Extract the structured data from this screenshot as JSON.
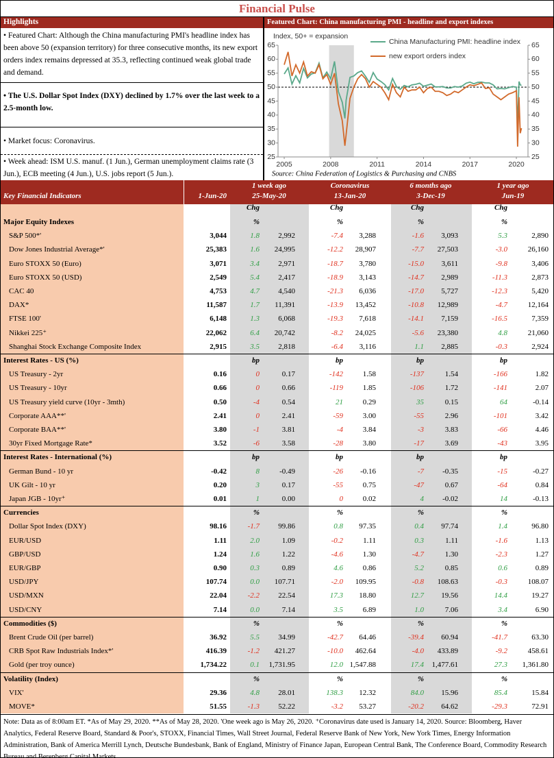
{
  "header": {
    "title": "Financial Pulse"
  },
  "highlights": {
    "title": "Highlights",
    "items": [
      "• Featured Chart: Although the China manufacturing PMI's headline index has been above 50 (expansion territory) for three consecutive months, its new export orders index remains depressed at 35.3, reflecting continued weak global trade and demand.",
      "• The U.S. Dollar Spot Index (DXY) declined by 1.7% over the last week to a 2.5-month low.",
      "• Market focus: Coronavirus.",
      "• Week ahead: ISM U.S. manuf. (1 Jun.), German unemployment claims rate (3 Jun.), ECB meeting (4 Jun.), U.S. jobs report (5 Jun.)."
    ]
  },
  "chart_data": {
    "type": "line",
    "title": "Featured Chart: China manufacturing PMI - headline and export indexes",
    "y_label": "Index, 50+ = expansion",
    "source": "Source: China Federation of Logistics & Purchasing and CNBS",
    "x": [
      2005,
      2005.25,
      2005.5,
      2005.75,
      2006,
      2006.25,
      2006.5,
      2006.75,
      2007,
      2007.25,
      2007.5,
      2007.75,
      2008,
      2008.25,
      2008.5,
      2008.75,
      2008.92,
      2009,
      2009.25,
      2009.5,
      2009.75,
      2010,
      2010.25,
      2010.5,
      2010.75,
      2011,
      2011.25,
      2011.5,
      2011.75,
      2012,
      2012.25,
      2012.5,
      2012.75,
      2013,
      2013.25,
      2013.5,
      2013.75,
      2014,
      2014.25,
      2014.5,
      2014.75,
      2015,
      2015.25,
      2015.5,
      2015.75,
      2016,
      2016.25,
      2016.5,
      2016.75,
      2017,
      2017.25,
      2017.5,
      2017.75,
      2018,
      2018.25,
      2018.5,
      2018.75,
      2019,
      2019.25,
      2019.5,
      2019.75,
      2020,
      2020.08,
      2020.17,
      2020.25,
      2020.33
    ],
    "series": [
      {
        "name": "China Manufacturing PMI: headline index",
        "color": "#5aa88a",
        "values": [
          54.7,
          56.9,
          51.1,
          54.1,
          51.5,
          56.7,
          53.3,
          54.7,
          55.1,
          58.6,
          53.3,
          55.4,
          53.0,
          59.2,
          48.4,
          44.6,
          38.8,
          45.3,
          53.5,
          54.0,
          55.2,
          55.8,
          53.9,
          51.7,
          55.2,
          52.9,
          52.0,
          50.9,
          49.0,
          53.1,
          50.2,
          49.2,
          50.6,
          50.1,
          50.8,
          51.0,
          51.4,
          50.3,
          50.7,
          51.1,
          50.1,
          50.1,
          50.2,
          49.7,
          49.7,
          50.2,
          50.0,
          50.4,
          51.4,
          51.8,
          51.2,
          51.7,
          51.8,
          51.5,
          51.5,
          50.8,
          49.4,
          49.5,
          49.4,
          49.8,
          50.2,
          50.0,
          35.7,
          52.0,
          50.8,
          50.6
        ]
      },
      {
        "name": "new export orders index",
        "color": "#d2692a",
        "values": [
          58,
          62.6,
          54,
          58,
          55,
          59,
          54,
          55.5,
          55,
          58,
          53,
          54.5,
          51,
          55,
          44,
          38,
          29,
          33,
          46,
          50,
          53,
          54.5,
          53,
          50,
          52,
          51,
          50,
          48,
          45.5,
          51,
          48,
          46.5,
          50,
          48.5,
          49,
          49,
          50,
          48,
          49.5,
          50,
          48.5,
          48.5,
          48,
          47,
          47.5,
          48.5,
          48,
          49,
          50,
          50.8,
          50.5,
          51,
          51.5,
          49.5,
          49.8,
          47.5,
          46.5,
          45.5,
          46.5,
          47.5,
          48,
          48.7,
          28.7,
          46.4,
          33.5,
          35.3
        ]
      }
    ],
    "xlim": [
      2004.6,
      2020.75
    ],
    "xticks": [
      2005,
      2008,
      2011,
      2014,
      2017,
      2020
    ],
    "ylim": [
      25,
      65
    ],
    "yticks": [
      25,
      30,
      35,
      40,
      45,
      50,
      55,
      60,
      65
    ],
    "y2lim": [
      25,
      65
    ],
    "y2ticks": [
      25,
      30,
      35,
      40,
      45,
      50,
      55,
      60,
      65
    ],
    "reference_line": 50,
    "shaded_x": [
      2007.9,
      2009.5
    ],
    "legend": "top-right"
  },
  "table": {
    "title": "Key Financial Indicators",
    "current_date": "1-Jun-20",
    "periods": [
      {
        "label": "1 week ago",
        "date": "25-May-20"
      },
      {
        "label": "Coronavirus",
        "date": "13-Jan-20"
      },
      {
        "label": "6 months ago",
        "date": "3-Dec-19"
      },
      {
        "label": "1 year ago",
        "date": "Jun-19"
      }
    ],
    "change_header": "Chg",
    "up_color": "#2f9e44",
    "down_color": "#e0301e",
    "sections": [
      {
        "name": "Major Equity Indexes",
        "unit": "%",
        "rows": [
          [
            "S&P 500*'",
            "3,044",
            "1.8",
            "2,992",
            "-7.4",
            "3,288",
            "-1.6",
            "3,093",
            "5.3",
            "2,890"
          ],
          [
            "Dow Jones Industrial Average*'",
            "25,383",
            "1.6",
            "24,995",
            "-12.2",
            "28,907",
            "-7.7",
            "27,503",
            "-3.0",
            "26,160"
          ],
          [
            "Euro STOXX 50 (Euro)",
            "3,071",
            "3.4",
            "2,971",
            "-18.7",
            "3,780",
            "-15.0",
            "3,611",
            "-9.8",
            "3,406"
          ],
          [
            "Euro STOXX 50 (USD)",
            "2,549",
            "5.4",
            "2,417",
            "-18.9",
            "3,143",
            "-14.7",
            "2,989",
            "-11.3",
            "2,873"
          ],
          [
            "CAC 40",
            "4,753",
            "4.7",
            "4,540",
            "-21.3",
            "6,036",
            "-17.0",
            "5,727",
            "-12.3",
            "5,420"
          ],
          [
            "DAX*",
            "11,587",
            "1.7",
            "11,391",
            "-13.9",
            "13,452",
            "-10.8",
            "12,989",
            "-4.7",
            "12,164"
          ],
          [
            "FTSE 100'",
            "6,148",
            "1.3",
            "6,068",
            "-19.3",
            "7,618",
            "-14.1",
            "7,159",
            "-16.5",
            "7,359"
          ],
          [
            "Nikkei 225⁺",
            "22,062",
            "6.4",
            "20,742",
            "-8.2",
            "24,025",
            "-5.6",
            "23,380",
            "4.8",
            "21,060"
          ],
          [
            "Shanghai Stock Exchange Composite Index",
            "2,915",
            "3.5",
            "2,818",
            "-6.4",
            "3,116",
            "1.1",
            "2,885",
            "-0.3",
            "2,924"
          ]
        ]
      },
      {
        "name": "Interest Rates - US (%)",
        "unit": "bp",
        "rows": [
          [
            "US Treasury - 2yr",
            "0.16",
            "0",
            "0.17",
            "-142",
            "1.58",
            "-137",
            "1.54",
            "-166",
            "1.82"
          ],
          [
            "US Treasury - 10yr",
            "0.66",
            "0",
            "0.66",
            "-119",
            "1.85",
            "-106",
            "1.72",
            "-141",
            "2.07"
          ],
          [
            "US Treasury yield curve (10yr - 3mth)",
            "0.50",
            "-4",
            "0.54",
            "21",
            "0.29",
            "35",
            "0.15",
            "64",
            "-0.14"
          ],
          [
            "Corporate AAA**'",
            "2.41",
            "0",
            "2.41",
            "-59",
            "3.00",
            "-55",
            "2.96",
            "-101",
            "3.42"
          ],
          [
            "Corporate BAA**'",
            "3.80",
            "-1",
            "3.81",
            "-4",
            "3.84",
            "-3",
            "3.83",
            "-66",
            "4.46"
          ],
          [
            "30yr Fixed Mortgage Rate*",
            "3.52",
            "-6",
            "3.58",
            "-28",
            "3.80",
            "-17",
            "3.69",
            "-43",
            "3.95"
          ]
        ]
      },
      {
        "name": "Interest Rates - International (%)",
        "unit": "bp",
        "rows": [
          [
            "German Bund - 10 yr",
            "-0.42",
            "8",
            "-0.49",
            "-26",
            "-0.16",
            "-7",
            "-0.35",
            "-15",
            "-0.27"
          ],
          [
            "UK Gilt - 10 yr",
            "0.20",
            "3",
            "0.17",
            "-55",
            "0.75",
            "-47",
            "0.67",
            "-64",
            "0.84"
          ],
          [
            "Japan JGB - 10yr⁺",
            "0.01",
            "1",
            "0.00",
            "0",
            "0.02",
            "4",
            "-0.02",
            "14",
            "-0.13"
          ]
        ]
      },
      {
        "name": "Currencies",
        "unit": "%",
        "rows": [
          [
            "Dollar Spot Index (DXY)",
            "98.16",
            "-1.7",
            "99.86",
            "0.8",
            "97.35",
            "0.4",
            "97.74",
            "1.4",
            "96.80"
          ],
          [
            "EUR/USD",
            "1.11",
            "2.0",
            "1.09",
            "-0.2",
            "1.11",
            "0.3",
            "1.11",
            "-1.6",
            "1.13"
          ],
          [
            "GBP/USD",
            "1.24",
            "1.6",
            "1.22",
            "-4.6",
            "1.30",
            "-4.7",
            "1.30",
            "-2.3",
            "1.27"
          ],
          [
            "EUR/GBP",
            "0.90",
            "0.3",
            "0.89",
            "4.6",
            "0.86",
            "5.2",
            "0.85",
            "0.6",
            "0.89"
          ],
          [
            "USD/JPY",
            "107.74",
            "0.0",
            "107.71",
            "-2.0",
            "109.95",
            "-0.8",
            "108.63",
            "-0.3",
            "108.07"
          ],
          [
            "USD/MXN",
            "22.04",
            "-2.2",
            "22.54",
            "17.3",
            "18.80",
            "12.7",
            "19.56",
            "14.4",
            "19.27"
          ],
          [
            "USD/CNY",
            "7.14",
            "0.0",
            "7.14",
            "3.5",
            "6.89",
            "1.0",
            "7.06",
            "3.4",
            "6.90"
          ]
        ]
      },
      {
        "name": "Commodities ($)",
        "unit": "%",
        "rows": [
          [
            "Brent Crude Oil (per barrel)",
            "36.92",
            "5.5",
            "34.99",
            "-42.7",
            "64.46",
            "-39.4",
            "60.94",
            "-41.7",
            "63.30"
          ],
          [
            "CRB Spot Raw Industrials Index*'",
            "416.39",
            "-1.2",
            "421.27",
            "-10.0",
            "462.64",
            "-4.0",
            "433.89",
            "-9.2",
            "458.61"
          ],
          [
            "Gold (per troy ounce)",
            "1,734.22",
            "0.1",
            "1,731.95",
            "12.0",
            "1,547.88",
            "17.4",
            "1,477.61",
            "27.3",
            "1,361.80"
          ]
        ]
      },
      {
        "name": "Volatility (Index)",
        "unit": "%",
        "rows": [
          [
            "VIX'",
            "29.36",
            "4.8",
            "28.01",
            "138.3",
            "12.32",
            "84.0",
            "15.96",
            "85.4",
            "15.84"
          ],
          [
            "MOVE*",
            "51.55",
            "-1.3",
            "52.22",
            "-3.2",
            "53.27",
            "-20.2",
            "64.62",
            "-29.3",
            "72.91"
          ]
        ]
      }
    ]
  },
  "note": "Note: Data as of 8:00am ET. *As of May 29, 2020. **As of May 28, 2020. 'One week ago is May 26, 2020. ⁺Coronavirus date used is January 14, 2020. Source: Bloomberg, Haver Analytics, Federal Reserve Board, Standard & Poor's, STOXX, Financial Times, Wall Street Journal, Federal Reserve Bank of New York, New York Times, Energy Information Administration, Bank of America Merrill Lynch, Deutsche Bundesbank, Bank of England, Ministry of Finance Japan, European Central Bank, The Conference Board, Commodity Research Bureau and Berenberg Capital Markets."
}
